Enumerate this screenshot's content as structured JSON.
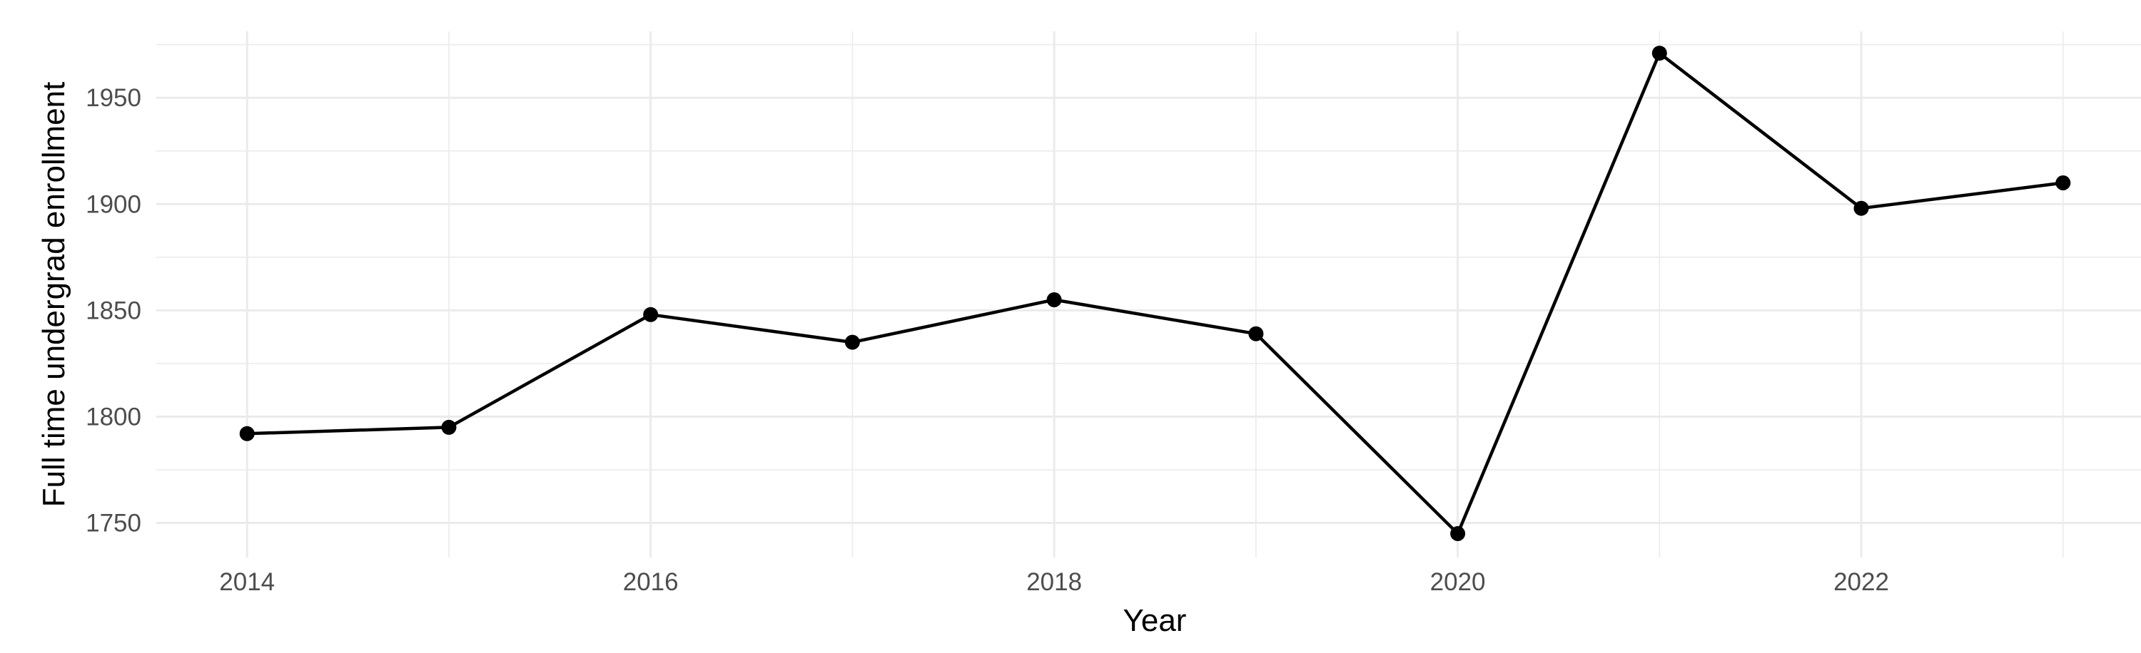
{
  "figure": {
    "description": "Minimal-theme line chart of full time undergraduate enrollment by year",
    "background_color": "#FFFFFF"
  },
  "chart_data": {
    "type": "line",
    "title": "",
    "xlabel": "Year",
    "ylabel": "Full time undergrad enrollment",
    "x": [
      2014,
      2015,
      2016,
      2017,
      2018,
      2019,
      2020,
      2021,
      2022,
      2023
    ],
    "series": [
      {
        "name": "Full time undergrad enrollment",
        "values": [
          1792,
          1795,
          1848,
          1835,
          1855,
          1839,
          1745,
          1971,
          1898,
          1910
        ]
      }
    ],
    "x_major_ticks": [
      2014,
      2016,
      2018,
      2020,
      2022
    ],
    "x_minor_gridlines": [
      2015,
      2017,
      2019,
      2021,
      2023
    ],
    "y_major_ticks": [
      1750,
      1800,
      1850,
      1900,
      1950
    ],
    "y_minor_gridlines": [
      1775,
      1825,
      1875,
      1925,
      1975
    ],
    "xlim": [
      2013.55,
      2023.45
    ],
    "ylim": [
      1733.75,
      1981.25
    ],
    "grid": "major and minor horizontal+vertical gridlines, no axis lines, no tick marks",
    "legend": "none",
    "marker": "filled circle",
    "style": {
      "line_color": "#000000",
      "point_color": "#000000",
      "grid_color": "#EBEBEB",
      "tick_label_color": "#4D4D4D",
      "axis_title_color": "#000000",
      "background_color": "#FFFFFF"
    }
  }
}
